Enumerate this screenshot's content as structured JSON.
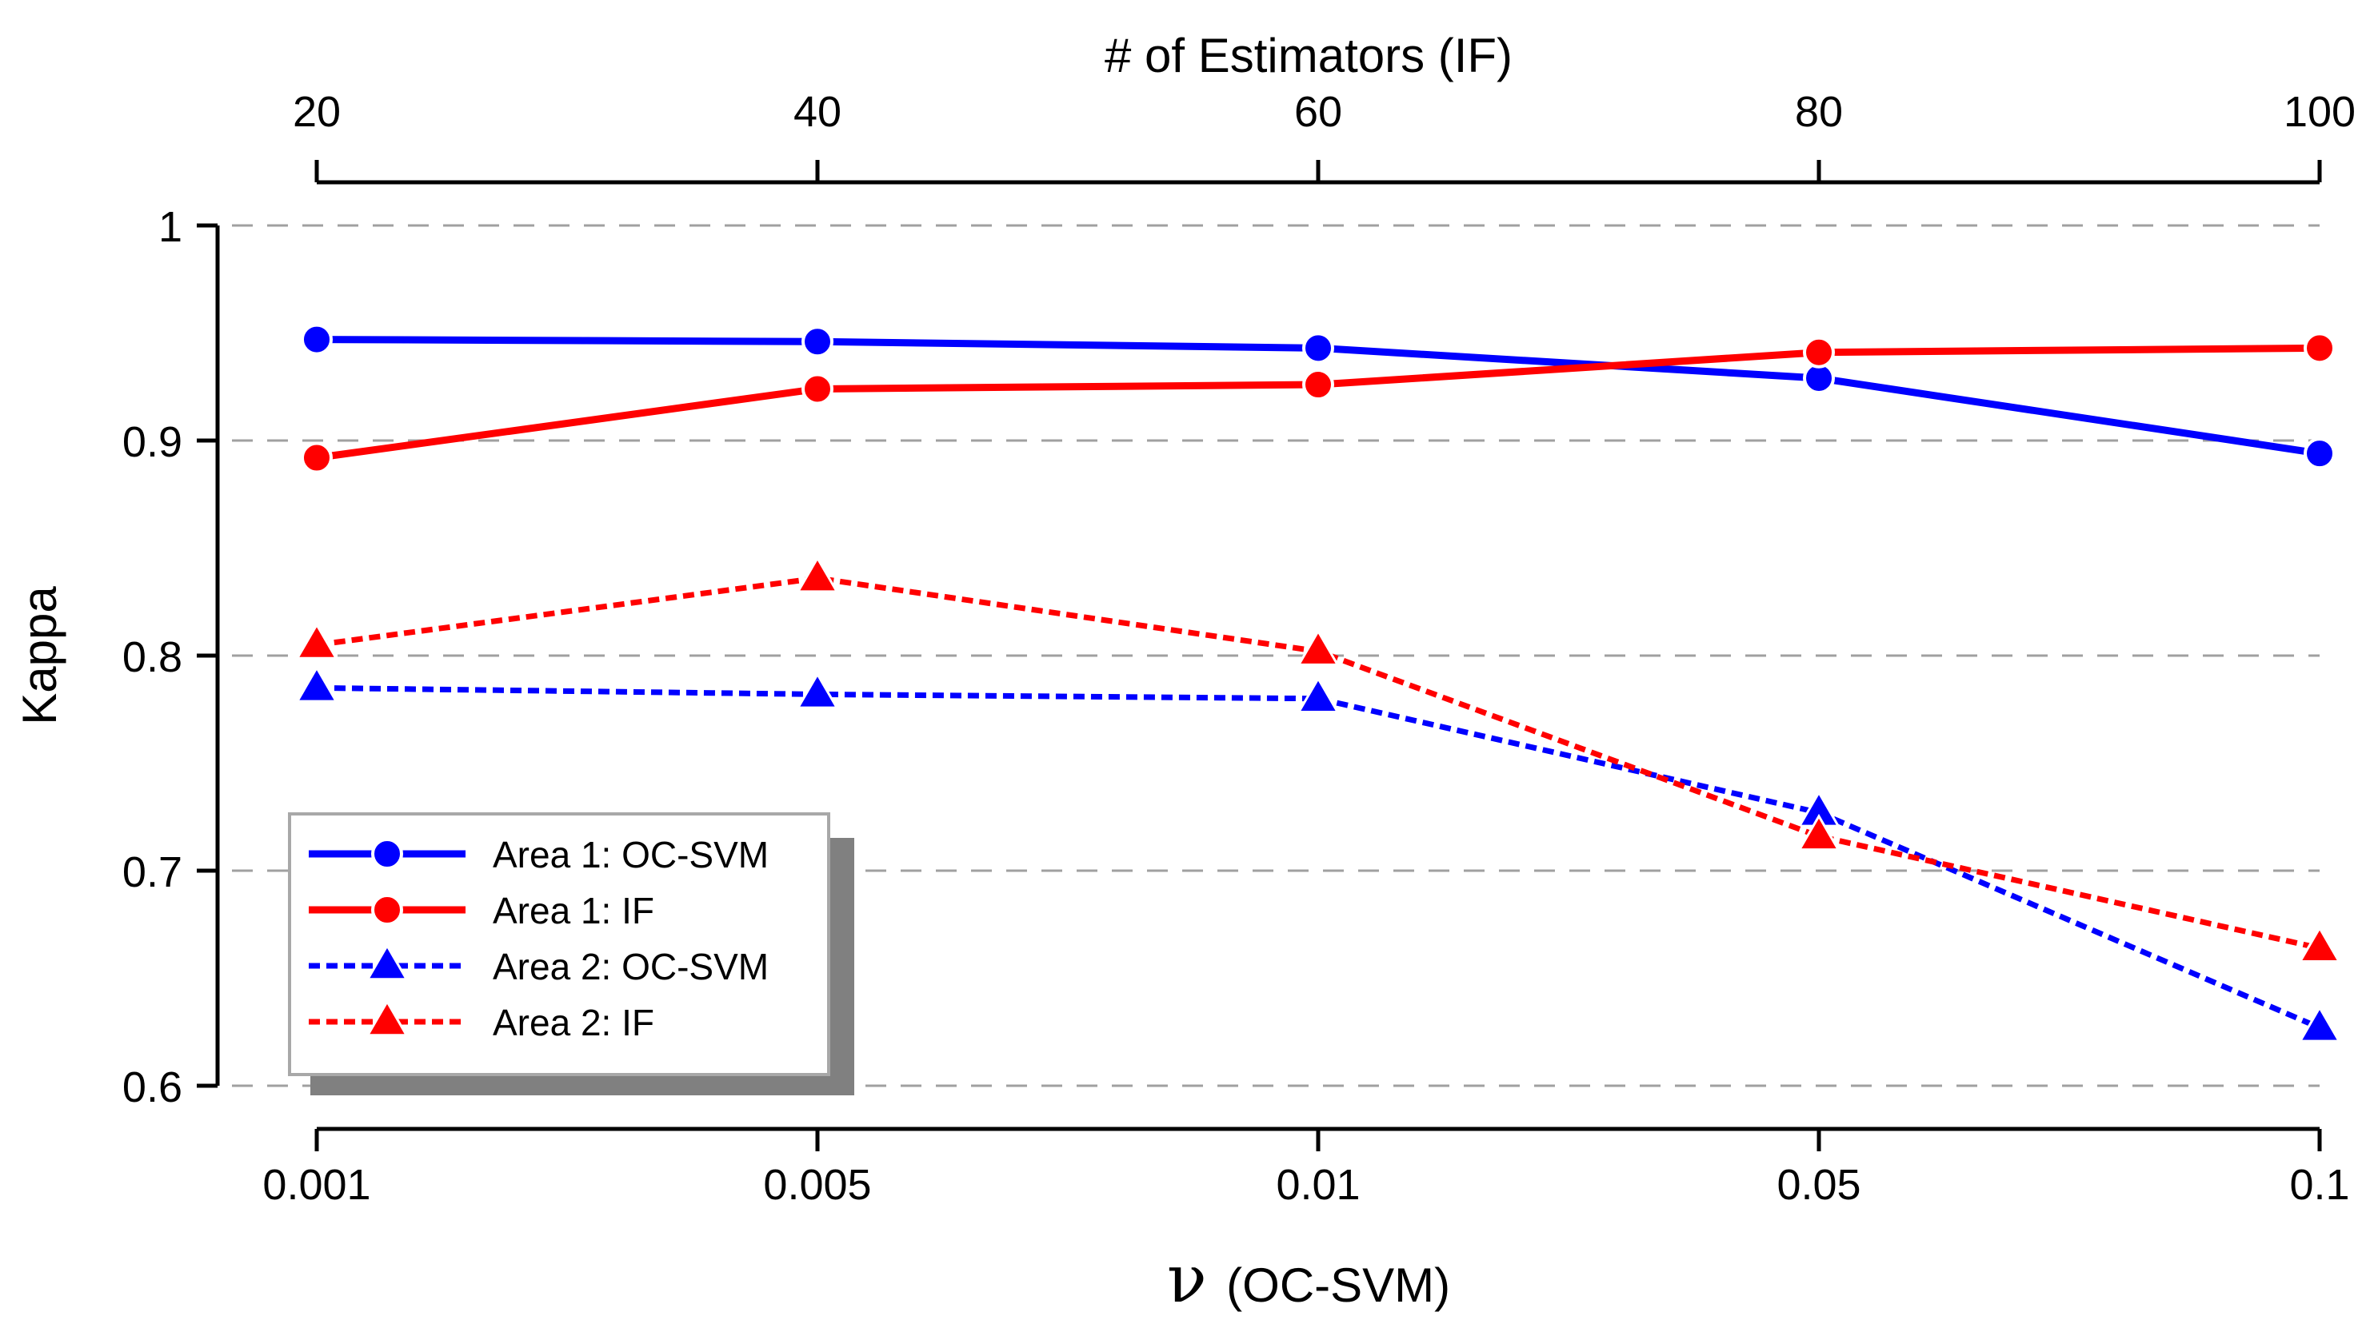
{
  "chart_data": {
    "type": "line",
    "title": "",
    "ylabel": "Kappa",
    "xlabel_bottom_symbol": "ν",
    "xlabel_bottom_text": "(OC-SVM)",
    "xlabel_top": "# of Estimators (IF)",
    "categories_bottom": [
      "0.001",
      "0.005",
      "0.01",
      "0.05",
      "0.1"
    ],
    "categories_top": [
      "20",
      "40",
      "60",
      "80",
      "100"
    ],
    "ylim": [
      0.6,
      1.0
    ],
    "yticks": [
      0.6,
      0.7,
      0.8,
      0.9,
      1.0
    ],
    "ytick_labels": [
      "0.6",
      "0.7",
      "0.8",
      "0.9",
      "1"
    ],
    "grid": "horizontal dashed",
    "legend_position": "bottom-left",
    "series": [
      {
        "name": "Area 1: OC-SVM",
        "color": "#0000ff",
        "dashed": false,
        "marker": "circle",
        "values": [
          0.947,
          0.946,
          0.943,
          0.929,
          0.894
        ]
      },
      {
        "name": "Area 1: IF",
        "color": "#ff0000",
        "dashed": false,
        "marker": "circle",
        "values": [
          0.892,
          0.924,
          0.926,
          0.941,
          0.943
        ]
      },
      {
        "name": "Area 2: OC-SVM",
        "color": "#0000ff",
        "dashed": true,
        "marker": "triangle",
        "values": [
          0.785,
          0.782,
          0.78,
          0.727,
          0.627
        ]
      },
      {
        "name": "Area 2: IF",
        "color": "#ff0000",
        "dashed": true,
        "marker": "triangle",
        "values": [
          0.805,
          0.836,
          0.802,
          0.716,
          0.664
        ]
      }
    ]
  }
}
